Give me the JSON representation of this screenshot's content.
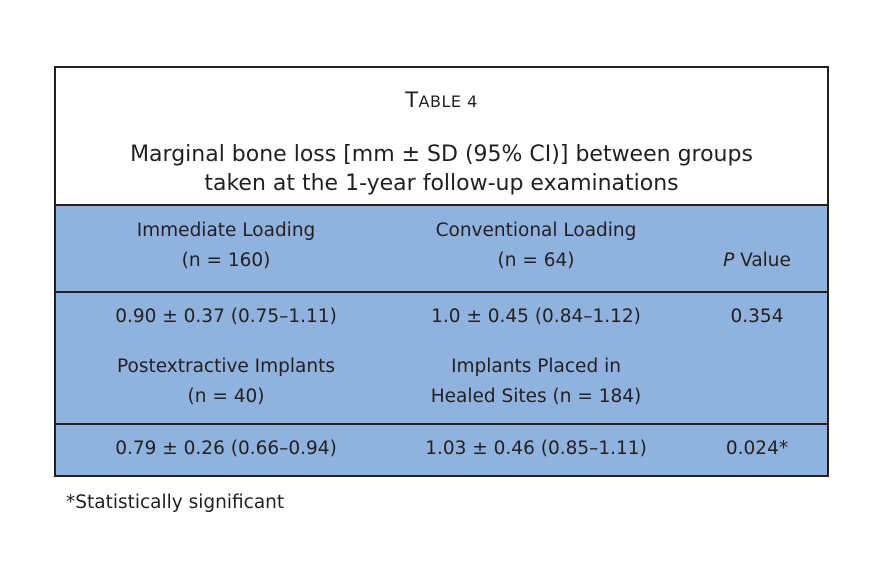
{
  "table": {
    "label_first": "T",
    "label_rest": "ABLE 4",
    "caption_line1": "Marginal bone loss [mm ± SD (95% CI)] between groups",
    "caption_line2": "taken at the 1-year follow-up examinations",
    "header": {
      "col1_line1": "Immediate Loading",
      "col1_line2": "(n = 160)",
      "col2_line1": "Conventional Loading",
      "col2_line2": "(n = 64)",
      "col3_italic": "P",
      "col3_rest": " Value"
    },
    "row1": {
      "col1": "0.90 ± 0.37 (0.75–1.11)",
      "col2": "1.0 ± 0.45 (0.84–1.12)",
      "col3": "0.354"
    },
    "subheader": {
      "col1_line1": "Postextractive Implants",
      "col1_line2": "(n = 40)",
      "col2_line1": "Implants Placed in",
      "col2_line2": "Healed Sites (n = 184)"
    },
    "row2": {
      "col1": "0.79 ± 0.26 (0.66–0.94)",
      "col2": "1.03 ± 0.46 (0.85–1.11)",
      "col3": "0.024*"
    }
  },
  "footnote": "*Statistically significant",
  "colors": {
    "header_fill": "#8fb3de",
    "text": "#231f20",
    "border": "#231f20"
  }
}
